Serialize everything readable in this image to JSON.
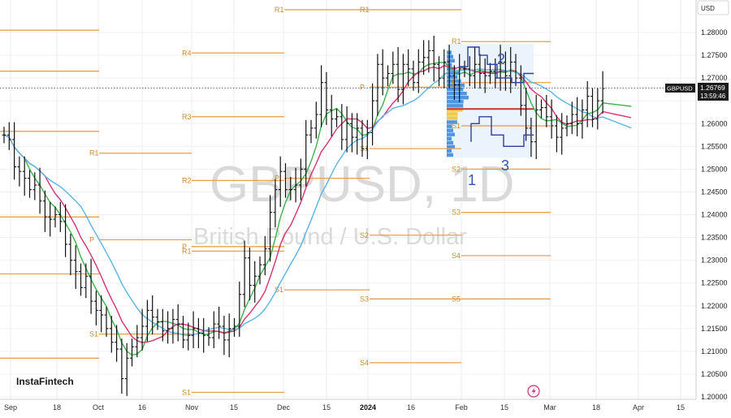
{
  "currency_selector": "USD",
  "symbol_label": "GBPUSD",
  "last_price": "1.26769",
  "countdown": "13:59:46",
  "brand": "InstaFintech",
  "watermark": {
    "line1": "GBPUSD, 1D",
    "line2": "British Pound / U.S. Dollar"
  },
  "annotations": [
    "1",
    "2",
    "3"
  ],
  "colors": {
    "candle": "#111111",
    "pivot": "#e8a04c",
    "ma_fast": "#3cb44b",
    "ma_mid": "#d6336c",
    "ma_slow": "#5ab4e6",
    "channel": "#2f3f9e",
    "profile": "#3d8be0",
    "profile_poc": "#f2c94c",
    "last_price_line": "#333333"
  },
  "chart_data": {
    "type": "candlestick",
    "symbol": "GBPUSD",
    "timeframe": "1D",
    "ylim": [
      1.2,
      1.285
    ],
    "y_ticks": [
      "1.28000",
      "1.27500",
      "1.27000",
      "1.26500",
      "1.26000",
      "1.25500",
      "1.25000",
      "1.24500",
      "1.24000",
      "1.23500",
      "1.23000",
      "1.22500",
      "1.22000",
      "1.21500",
      "1.21000",
      "1.20500",
      "1.20000"
    ],
    "x_ticks": [
      {
        "label": "Sep",
        "bold": false
      },
      {
        "label": "18",
        "bold": false
      },
      {
        "label": "Oct",
        "bold": false
      },
      {
        "label": "16",
        "bold": false
      },
      {
        "label": "Nov",
        "bold": false
      },
      {
        "label": "15",
        "bold": false
      },
      {
        "label": "Dec",
        "bold": false
      },
      {
        "label": "15",
        "bold": false
      },
      {
        "label": "2024",
        "bold": true
      },
      {
        "label": "16",
        "bold": false
      },
      {
        "label": "Feb",
        "bold": false
      },
      {
        "label": "15",
        "bold": false
      },
      {
        "label": "Mar",
        "bold": false
      },
      {
        "label": "18",
        "bold": false
      },
      {
        "label": "Apr",
        "bold": false
      },
      {
        "label": "15",
        "bold": false
      }
    ],
    "date_range": [
      "2023-09-01",
      "2024-02-22"
    ],
    "last_price": 1.26769,
    "moving_averages": [
      "green (fast)",
      "red (medium)",
      "blue (slow)"
    ],
    "closes": [
      1.2575,
      1.2565,
      1.2505,
      1.2495,
      1.248,
      1.2455,
      1.2465,
      1.243,
      1.2395,
      1.239,
      1.24,
      1.2385,
      1.2335,
      1.23,
      1.2275,
      1.224,
      1.2265,
      1.221,
      1.219,
      1.218,
      1.215,
      1.212,
      1.2105,
      1.204,
      1.2085,
      1.211,
      1.213,
      1.2155,
      1.219,
      1.2175,
      1.2165,
      1.2145,
      1.215,
      1.217,
      1.216,
      1.2125,
      1.2135,
      1.215,
      1.214,
      1.2135,
      1.213,
      1.216,
      1.2155,
      1.2125,
      1.215,
      1.2155,
      1.2225,
      1.2305,
      1.2245,
      1.2265,
      1.229,
      1.2325,
      1.2405,
      1.2455,
      1.2495,
      1.2455,
      1.2455,
      1.2465,
      1.25,
      1.2575,
      1.259,
      1.262,
      1.269,
      1.263,
      1.261,
      1.2615,
      1.2565,
      1.26,
      1.257,
      1.259,
      1.2545,
      1.258,
      1.265,
      1.273,
      1.27,
      1.271,
      1.273,
      1.2675,
      1.273,
      1.272,
      1.269,
      1.2735,
      1.2745,
      1.276,
      1.273,
      1.27,
      1.2735,
      1.2705,
      1.2685,
      1.272,
      1.272,
      1.2705,
      1.273,
      1.271,
      1.2705,
      1.2715,
      1.27,
      1.2735,
      1.2705,
      1.2735,
      1.27,
      1.264,
      1.259,
      1.256,
      1.263,
      1.2635,
      1.2615,
      1.2595,
      1.257,
      1.259,
      1.26,
      1.262,
      1.26,
      1.263,
      1.266,
      1.261,
      1.265,
      1.2677
    ],
    "pivot_sets": [
      {
        "name": "Aug monthly",
        "levels": [
          {
            "label": "R1",
            "value": 1.2805
          },
          {
            "label": "P",
            "value": 1.2715
          },
          {
            "label": "S1",
            "value": 1.2583
          },
          {
            "label": "S2",
            "value": 1.2395
          },
          {
            "label": "S3",
            "value": 1.227
          },
          {
            "label": "S4",
            "value": 1.2085
          }
        ]
      },
      {
        "name": "Sep monthly",
        "levels": [
          {
            "label": "R1",
            "value": 1.2535
          },
          {
            "label": "P",
            "value": 1.2345
          },
          {
            "label": "S1",
            "value": 1.2138
          }
        ]
      },
      {
        "name": "Oct monthly",
        "levels": [
          {
            "label": "R4",
            "value": 1.2755
          },
          {
            "label": "R3",
            "value": 1.2615
          },
          {
            "label": "R2",
            "value": 1.2475
          },
          {
            "label": "P",
            "value": 1.233
          },
          {
            "label": "R1",
            "value": 1.232
          },
          {
            "label": "S1",
            "value": 1.201
          }
        ]
      },
      {
        "name": "Nov monthly",
        "levels": [
          {
            "label": "R1",
            "value": 1.285
          },
          {
            "label": "P",
            "value": 1.248
          },
          {
            "label": "S1",
            "value": 1.2235
          }
        ]
      },
      {
        "name": "Dec monthly",
        "levels": [
          {
            "label": "R1",
            "value": 1.285
          },
          {
            "label": "P",
            "value": 1.268
          },
          {
            "label": "S1",
            "value": 1.2545
          },
          {
            "label": "S2",
            "value": 1.2355
          },
          {
            "label": "S3",
            "value": 1.2215
          },
          {
            "label": "S4",
            "value": 1.2075
          }
        ]
      },
      {
        "name": "Jan monthly",
        "levels": [
          {
            "label": "R1",
            "value": 1.278
          },
          {
            "label": "P",
            "value": 1.269
          },
          {
            "label": "S1",
            "value": 1.2595
          },
          {
            "label": "S2",
            "value": 1.25
          },
          {
            "label": "S3",
            "value": 1.2405
          },
          {
            "label": "S4",
            "value": 1.231
          },
          {
            "label": "S5",
            "value": 1.2215
          }
        ]
      }
    ]
  }
}
